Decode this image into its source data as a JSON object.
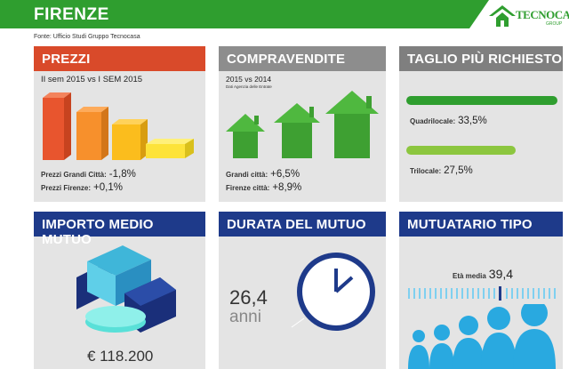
{
  "header": {
    "title": "FIRENZE",
    "source": "Fonte: Ufficio Studi Gruppo Tecnocasa"
  },
  "logo": {
    "name": "TECNOCASA",
    "sub": "GROUP"
  },
  "prezzi": {
    "title": "PREZZI",
    "subtitle": "II sem 2015 vs I SEM 2015",
    "rows": [
      {
        "label": "Prezzi Grandi Città:",
        "value": "-1,8%"
      },
      {
        "label": "Prezzi Firenze:",
        "value": "+0,1%"
      }
    ]
  },
  "compravendite": {
    "title": "COMPRAVENDITE",
    "subtitle": "2015 vs 2014",
    "note": "Dati Agenzia delle Entrate",
    "rows": [
      {
        "label": "Grandi città:",
        "value": "+6,5%"
      },
      {
        "label": "Firenze città:",
        "value": "+8,9%"
      }
    ]
  },
  "taglio": {
    "title": "TAGLIO PIÙ RICHIESTO",
    "items": [
      {
        "label": "Quadrilocale:",
        "value": "33,5%",
        "share": 33.5
      },
      {
        "label": "Trilocale:",
        "value": "27,5%",
        "share": 27.5
      }
    ]
  },
  "importo": {
    "title": "IMPORTO MEDIO MUTUO",
    "value": "€ 118.200"
  },
  "durata": {
    "title": "DURATA DEL MUTUO",
    "value": "26,4",
    "unit": "anni"
  },
  "mutuatario": {
    "title": "MUTUATARIO TIPO",
    "label": "Età media",
    "value": "39,4"
  },
  "colors": {
    "green": "#2f9e2f",
    "red": "#d94a2a",
    "blue": "#1e3a8a",
    "gray": "#8d8d8d",
    "lime": "#8cc63f"
  }
}
